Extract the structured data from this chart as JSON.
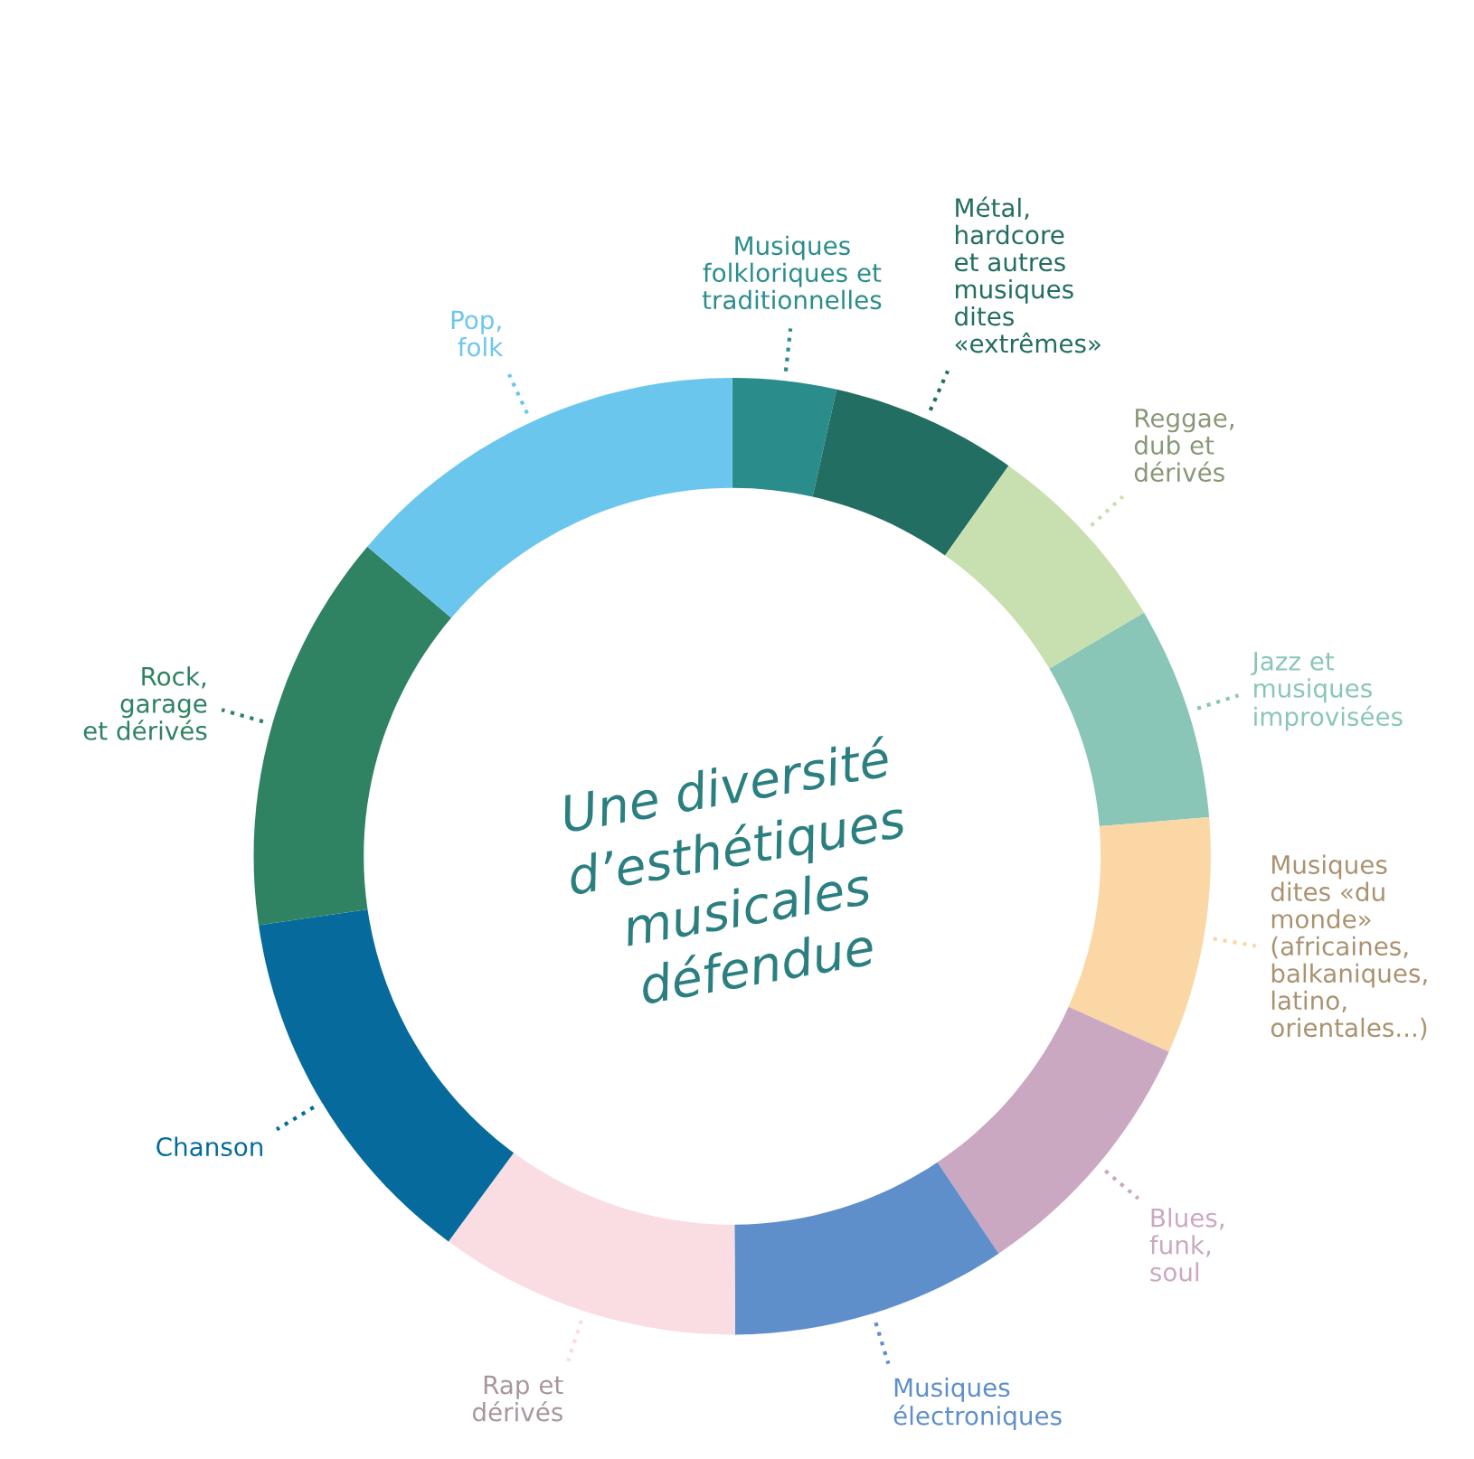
{
  "chart_data": {
    "type": "donut",
    "title": "Une diversité\nd’esthétiques\nmusicales\ndéfendue",
    "categories": [
      "Musiques\nfolkloriques et\ntraditionnelles",
      "Métal,\nhardcore\net autres\nmusiques\ndites\n«extrêmes»",
      "Reggae,\ndub et\ndérivés",
      "Jazz et\nmusiques\nimprovisées",
      "Musiques\ndites «du\nmonde»\n(africaines,\nbalkaniques,\nlatino,\norientales...)",
      "Blues,\nfunk,\nsoul",
      "Musiques\nélectroniques",
      "Rap et\ndérivés",
      "Chanson",
      "Rock,\ngarage\net dérivés",
      "Pop,\nfolk"
    ],
    "values": [
      3.5,
      6.3,
      6.7,
      7.2,
      8.0,
      8.9,
      9.3,
      10.2,
      12.6,
      13.5,
      13.8
    ],
    "colors": [
      "#2b8c8c",
      "#236e62",
      "#c8e0b0",
      "#8ac6b8",
      "#fad7a5",
      "#cba8c2",
      "#5e8fca",
      "#f9dde2",
      "#066b9c",
      "#2f8262",
      "#6bc6ee"
    ]
  }
}
